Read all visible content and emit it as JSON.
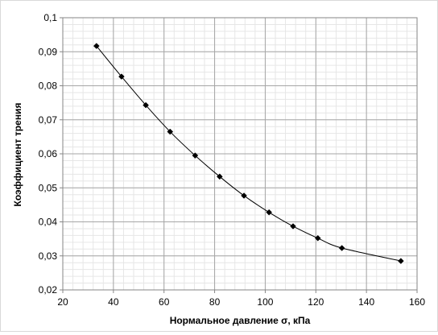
{
  "chart_data": {
    "type": "scatter",
    "title": "",
    "xlabel": "Нормальное давление σ, кПа",
    "ylabel": "Коэффициент трения",
    "xlim": [
      20,
      160
    ],
    "ylim": [
      0.02,
      0.1
    ],
    "x_ticks": [
      20,
      40,
      60,
      80,
      100,
      120,
      140,
      160
    ],
    "y_ticks": [
      0.02,
      0.03,
      0.04,
      0.05,
      0.06,
      0.07,
      0.08,
      0.09,
      0.1
    ],
    "x_tick_labels": [
      "20",
      "40",
      "60",
      "80",
      "100",
      "120",
      "140",
      "160"
    ],
    "y_tick_labels": [
      "0,02",
      "0,03",
      "0,04",
      "0,05",
      "0,06",
      "0,07",
      "0,08",
      "0,09",
      "0,1"
    ],
    "grid": true,
    "minor_grid": true,
    "legend": "none",
    "series": [
      {
        "x": [
          33.3,
          43.2,
          52.8,
          62.4,
          72.3,
          82.0,
          91.6,
          101.5,
          111.0,
          120.8,
          130.3,
          153.6
        ],
        "y": [
          0.0917,
          0.0827,
          0.0743,
          0.0665,
          0.0595,
          0.0533,
          0.0477,
          0.0428,
          0.0387,
          0.0352,
          0.0323,
          0.0285
        ],
        "marker": "diamond",
        "marker_color": "#000000",
        "trendline": true,
        "trendline_color": "#000000"
      }
    ]
  }
}
